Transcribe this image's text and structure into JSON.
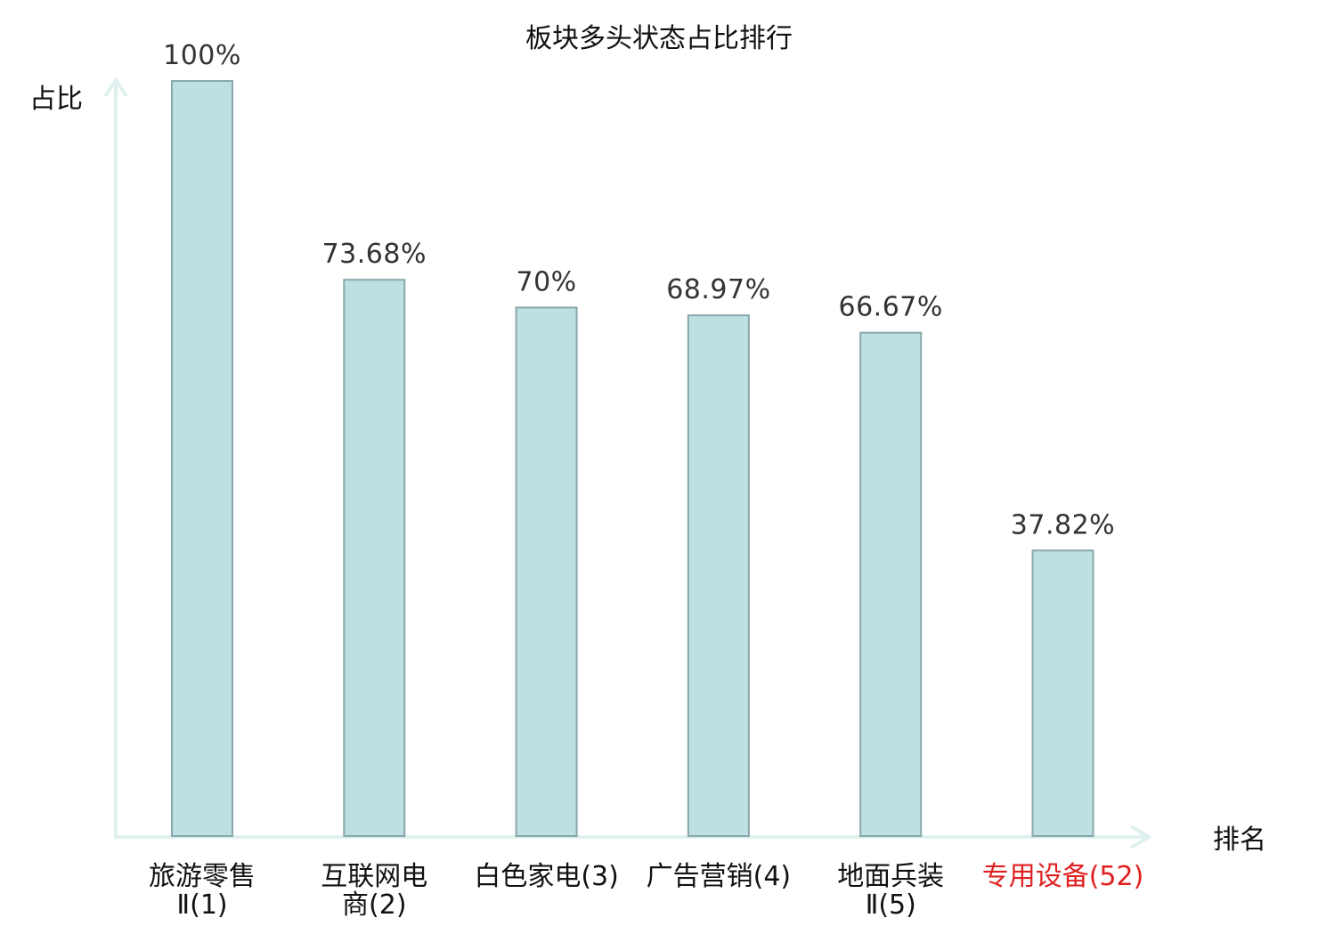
{
  "chart_data": {
    "type": "bar",
    "title": "板块多头状态占比排行",
    "ylabel": "占比",
    "xlabel": "排名",
    "ylim": [
      0,
      100
    ],
    "grid": false,
    "categories": [
      {
        "lines": [
          "旅游零售",
          "Ⅱ(1)"
        ],
        "highlight": false
      },
      {
        "lines": [
          "互联网电",
          "商(2)"
        ],
        "highlight": false
      },
      {
        "lines": [
          "白色家电(3)"
        ],
        "highlight": false
      },
      {
        "lines": [
          "广告营销(4)"
        ],
        "highlight": false
      },
      {
        "lines": [
          "地面兵装",
          "Ⅱ(5)"
        ],
        "highlight": false
      },
      {
        "lines": [
          "专用设备(52)"
        ],
        "highlight": true
      }
    ],
    "values": [
      100,
      73.68,
      70,
      68.97,
      66.67,
      37.82
    ],
    "value_labels": [
      "100%",
      "73.68%",
      "70%",
      "68.97%",
      "66.67%",
      "37.82%"
    ],
    "colors": {
      "bar_fill": "#bde0e3",
      "bar_stroke": "#8aa7ab",
      "axis": "#dff1ef",
      "highlight_text": "#e02020"
    }
  }
}
